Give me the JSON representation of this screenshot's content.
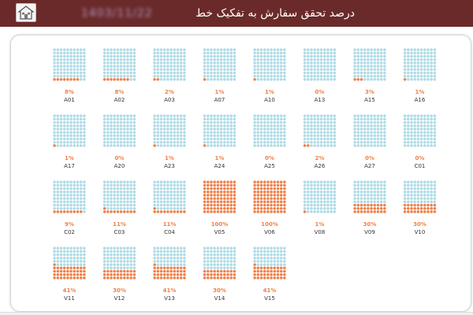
{
  "header": {
    "title": "درصد تحقق سفارش به تفکیک خط",
    "date": "1403/11/22"
  },
  "colors": {
    "header_bg": "#6b2a2a",
    "filled": "#f0804a",
    "empty": "#aedbe6",
    "percent_text": "#f0804a",
    "label_text": "#333333"
  },
  "icons": {
    "home": "home-icon"
  },
  "chart_data": {
    "type": "waffle",
    "grid": [
      10,
      10
    ],
    "value_unit": "%",
    "ylim": [
      0,
      100
    ],
    "categories": [
      "A01",
      "A02",
      "A03",
      "A07",
      "A10",
      "A13",
      "A15",
      "A16",
      "A17",
      "A20",
      "A23",
      "A24",
      "A25",
      "A26",
      "A27",
      "C01",
      "C02",
      "C03",
      "C04",
      "V05",
      "V06",
      "V08",
      "V09",
      "V10",
      "V11",
      "V12",
      "V13",
      "V14",
      "V15"
    ],
    "values": [
      8,
      8,
      2,
      1,
      1,
      0,
      3,
      1,
      1,
      0,
      1,
      1,
      0,
      2,
      0,
      0,
      9,
      11,
      11,
      100,
      100,
      1,
      30,
      30,
      41,
      30,
      41,
      30,
      41
    ]
  }
}
